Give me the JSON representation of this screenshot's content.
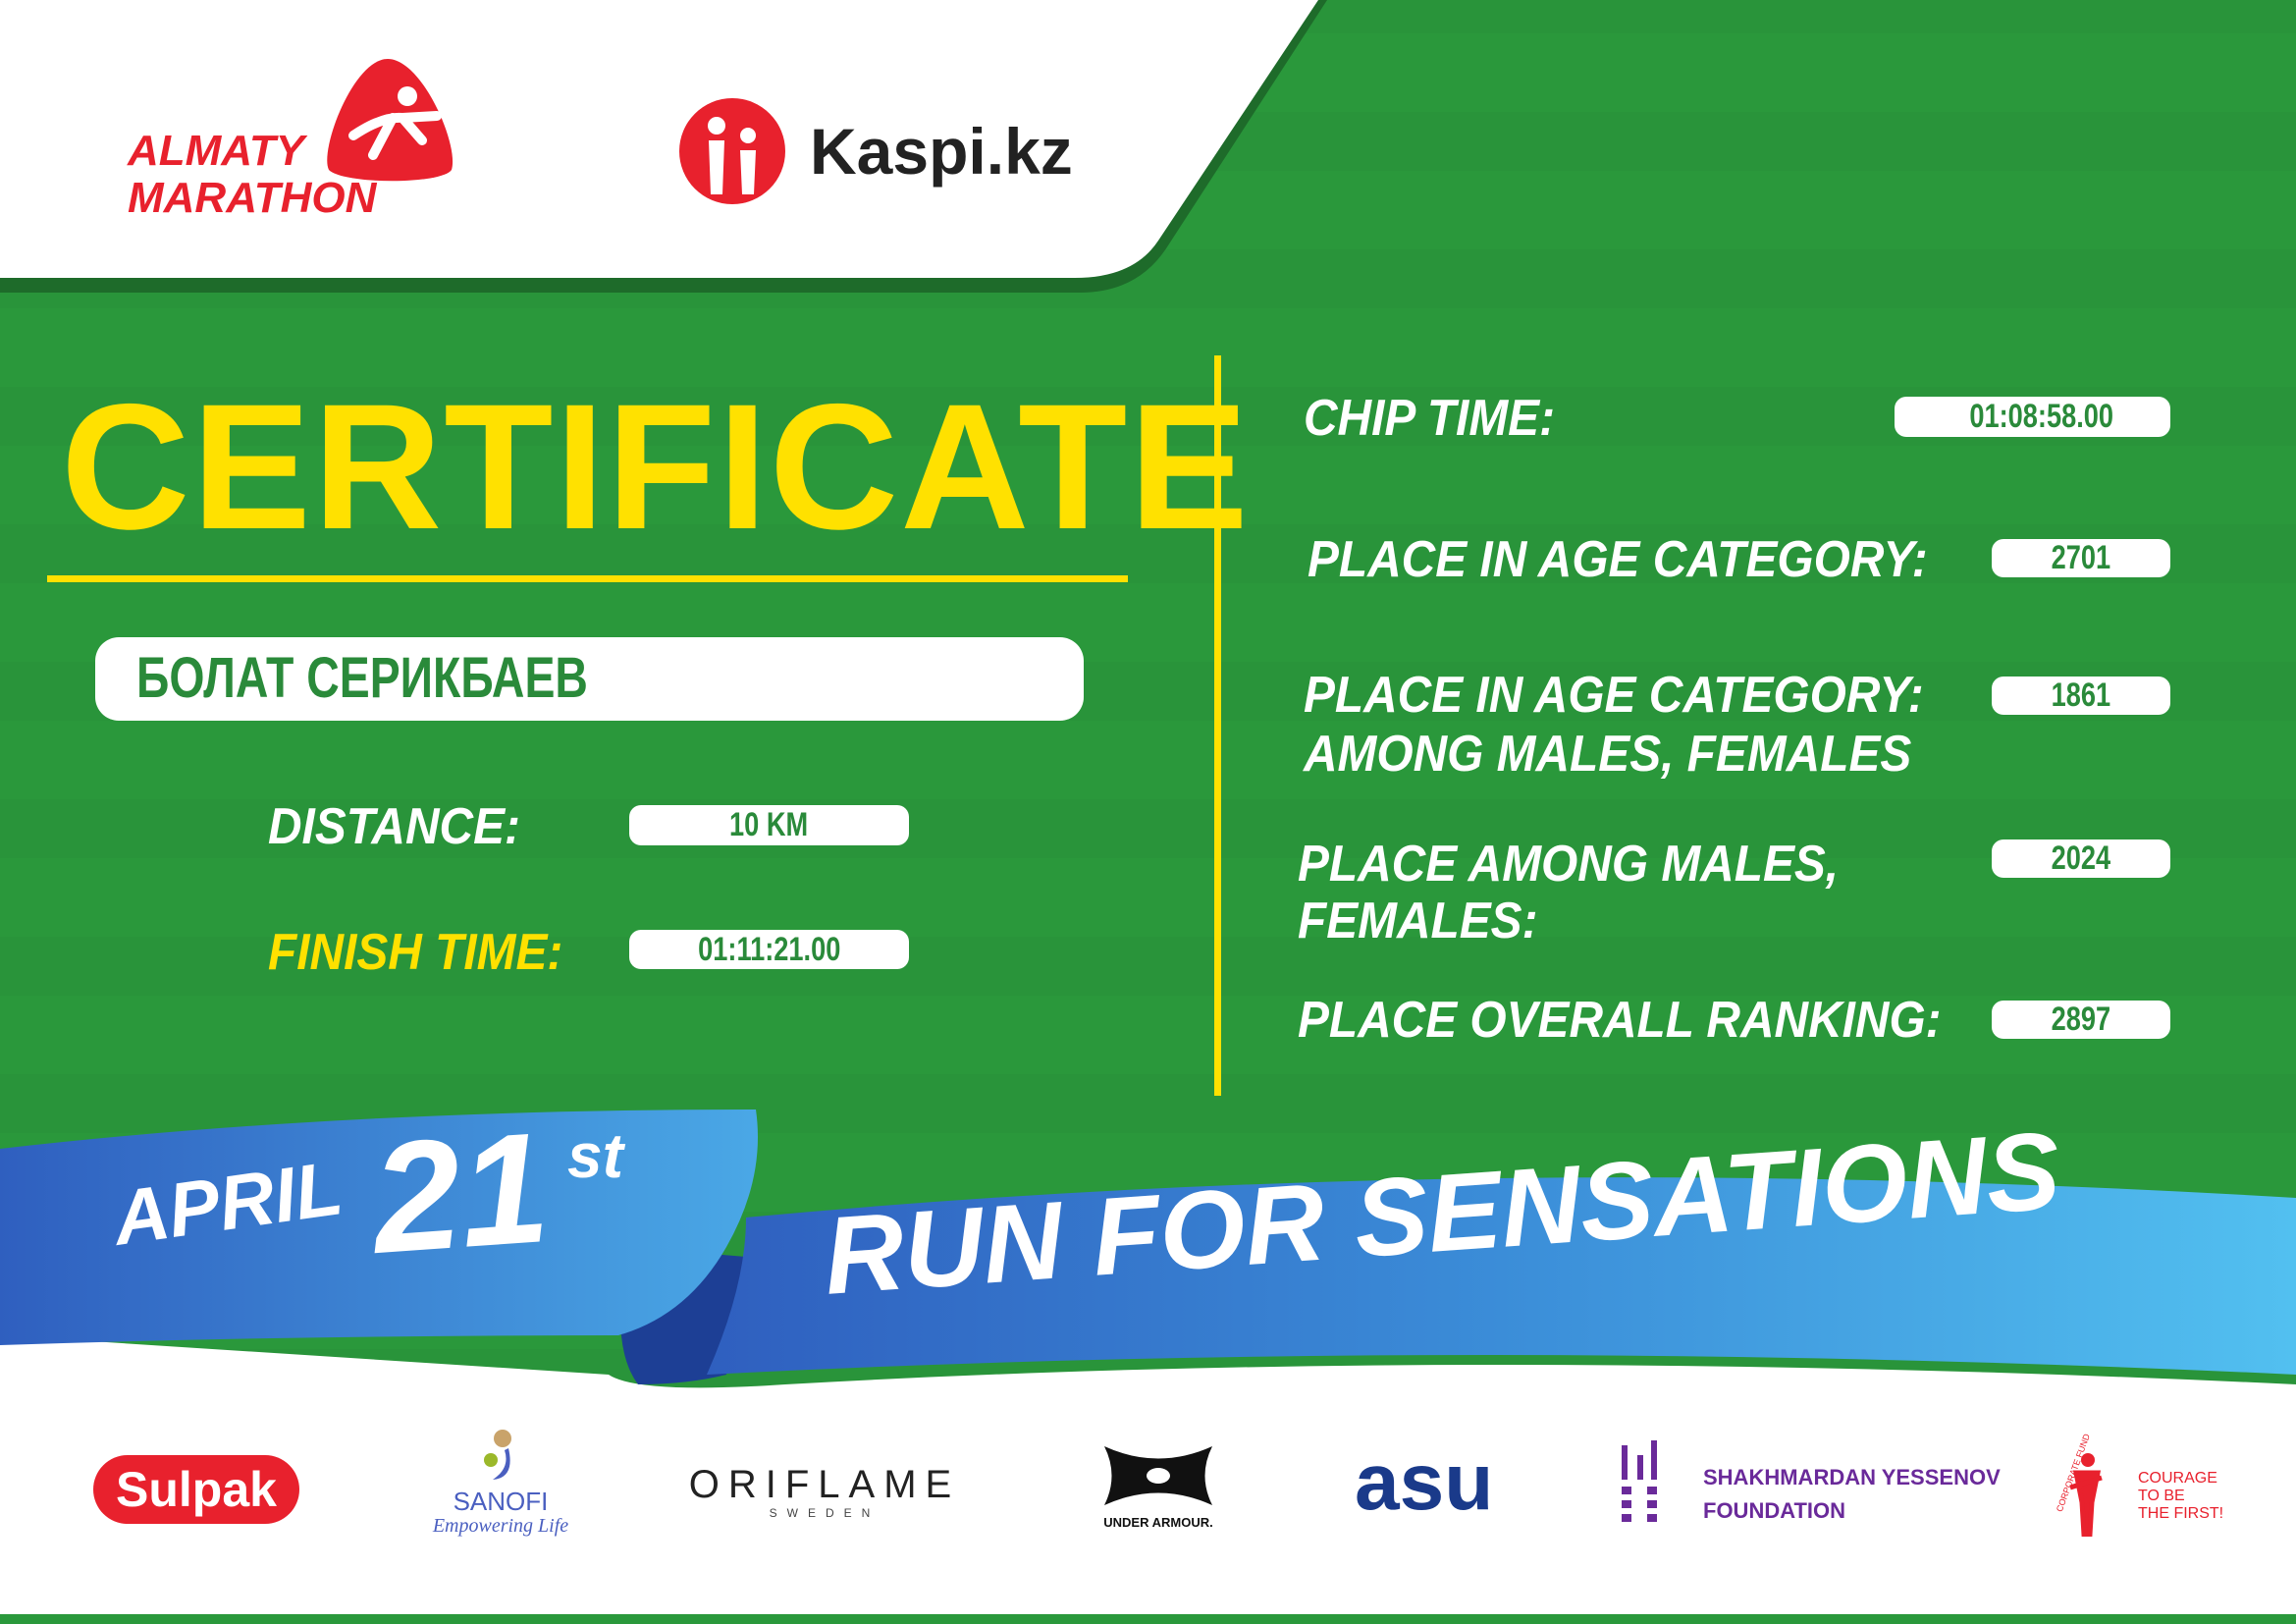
{
  "header": {
    "event_logo_line1": "ALMATY",
    "event_logo_line2": "MARATHON",
    "sponsor_logo": "Kaspi.kz"
  },
  "certificate": {
    "title": "CERTIFICATE",
    "runner_name": "БОЛАТ СЕРИКБАЕВ",
    "distance_label": "DISTANCE:",
    "distance_value": "10 KM",
    "finish_time_label": "FINISH TIME:",
    "finish_time_value": "01:11:21.00"
  },
  "results": {
    "chip_time_label": "CHIP TIME:",
    "chip_time_value": "01:08:58.00",
    "age_category_label": "PLACE IN AGE CATEGORY:",
    "age_category_value": "2701",
    "age_category_gender_label_1": "PLACE IN AGE CATEGORY:",
    "age_category_gender_label_2": "AMONG MALES, FEMALES",
    "age_category_gender_value": "1861",
    "gender_label_1": "PLACE AMONG MALES,",
    "gender_label_2": "FEMALES:",
    "gender_value": "2024",
    "overall_label": "PLACE OVERALL RANKING:",
    "overall_value": "2897"
  },
  "banner": {
    "month": "APRIL",
    "day": "21",
    "suffix": "st",
    "slogan": "RUN FOR SENSATIONS"
  },
  "sponsors": {
    "sulpak": "Sulpak",
    "sanofi": "SANOFI",
    "sanofi_tagline": "Empowering Life",
    "oriflame": "ORIFLAME",
    "oriflame_sub": "SWEDEN",
    "under_armour": "UNDER ARMOUR.",
    "asu": "asu",
    "yessenov_1": "SHAKHMARDAN YESSENOV",
    "yessenov_2": "FOUNDATION",
    "courage_fund": "CORPORATE FUND",
    "courage_1": "COURAGE",
    "courage_2": "TO BE",
    "courage_3": "THE FIRST!"
  },
  "colors": {
    "green": "#2a983b",
    "yellow": "#ffe100",
    "red": "#e8212d",
    "ribbon_blue": "#3a8fd8"
  }
}
